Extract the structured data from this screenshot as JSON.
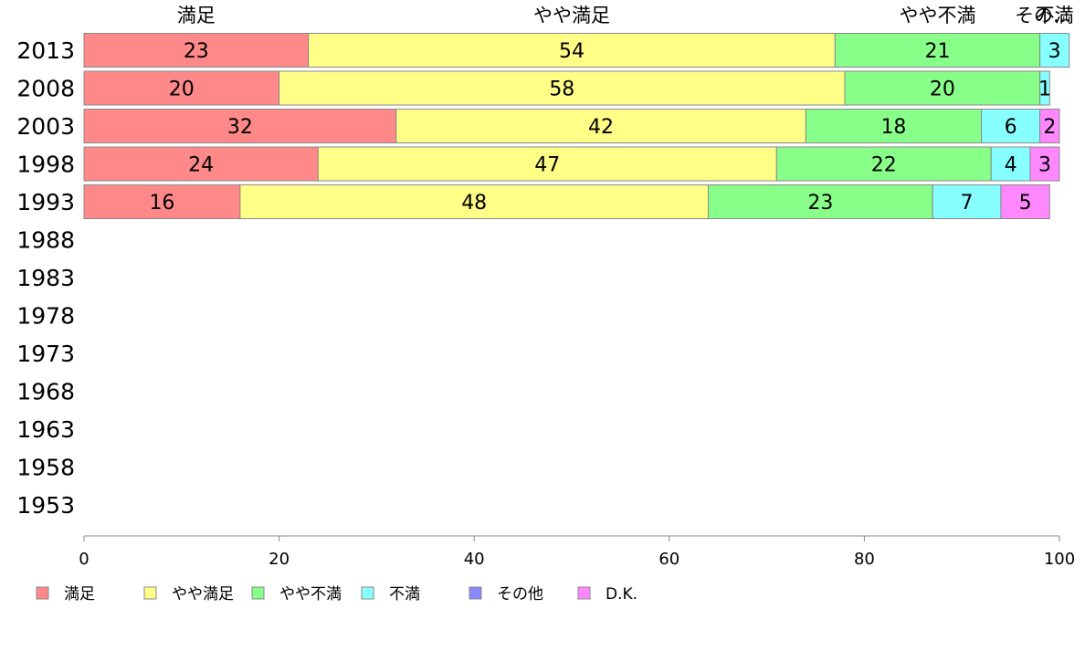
{
  "chart_data": {
    "type": "bar",
    "orientation": "horizontal",
    "stacked": true,
    "categories": [
      "2013",
      "2008",
      "2003",
      "1998",
      "1993",
      "1988",
      "1983",
      "1978",
      "1973",
      "1968",
      "1963",
      "1958",
      "1953"
    ],
    "top_labels": [
      "満足",
      "やや満足",
      "やや不満",
      "不満",
      "その..."
    ],
    "series": [
      {
        "name": "満足",
        "color": "#ff8888",
        "values": [
          23,
          20,
          32,
          24,
          16,
          null,
          null,
          null,
          null,
          null,
          null,
          null,
          null
        ]
      },
      {
        "name": "やや満足",
        "color": "#ffff88",
        "values": [
          54,
          58,
          42,
          47,
          48,
          null,
          null,
          null,
          null,
          null,
          null,
          null,
          null
        ]
      },
      {
        "name": "やや不満",
        "color": "#88ff88",
        "values": [
          21,
          20,
          18,
          22,
          23,
          null,
          null,
          null,
          null,
          null,
          null,
          null,
          null
        ]
      },
      {
        "name": "不満",
        "color": "#88ffff",
        "values": [
          3,
          1,
          6,
          4,
          7,
          null,
          null,
          null,
          null,
          null,
          null,
          null,
          null
        ]
      },
      {
        "name": "その他",
        "color": "#8888ff",
        "values": [
          0,
          0,
          0,
          0,
          0,
          null,
          null,
          null,
          null,
          null,
          null,
          null,
          null
        ]
      },
      {
        "name": "D.K.",
        "color": "#ff88ff",
        "values": [
          0,
          0,
          2,
          3,
          5,
          null,
          null,
          null,
          null,
          null,
          null,
          null,
          null
        ]
      }
    ],
    "xlim": [
      0,
      100
    ],
    "xticks": [
      0,
      20,
      40,
      60,
      80,
      100
    ],
    "grid": false,
    "legend_position": "bottom"
  }
}
